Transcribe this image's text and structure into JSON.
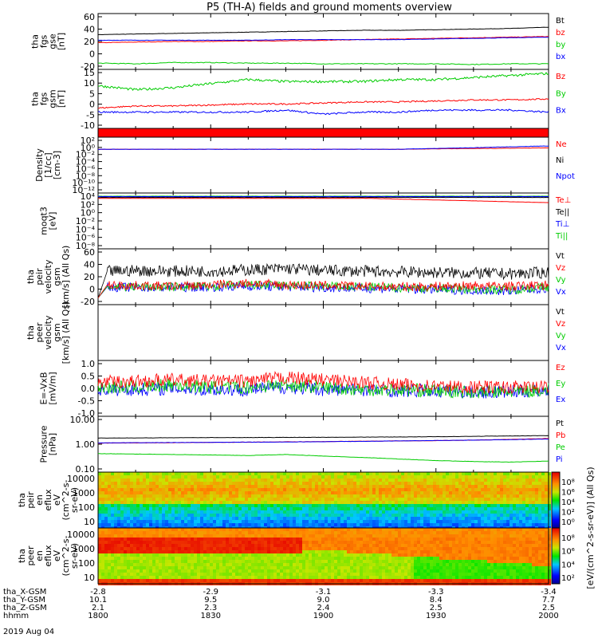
{
  "title": "P5 (TH-A) fields and ground moments overview",
  "date_label": "2019 Aug 04",
  "colors": {
    "black": "#000000",
    "red": "#ff0000",
    "green": "#00cc00",
    "blue": "#0000ff",
    "lightgreen": "#66cc00",
    "yellow": "#e0e000"
  },
  "ephemeris": {
    "rows": [
      "tha_X-GSM",
      "tha_Y-GSM",
      "tha_Z-GSM",
      "hhmm"
    ],
    "columns": [
      {
        "hhmm": "1800",
        "x": "-2.8",
        "y": "10.1",
        "z": "2.1"
      },
      {
        "hhmm": "1830",
        "x": "-2.9",
        "y": "9.5",
        "z": "2.3"
      },
      {
        "hhmm": "1900",
        "x": "-3.1",
        "y": "9.0",
        "z": "2.4"
      },
      {
        "hhmm": "1930",
        "x": "-3.3",
        "y": "8.4",
        "z": "2.5"
      },
      {
        "hhmm": "2000",
        "x": "-3.4",
        "y": "7.7",
        "z": "2.5"
      }
    ]
  },
  "colorbar": {
    "label": "[eV/(cm^2-s-sr-eV)] (All Qs)"
  },
  "chart_data": [
    {
      "type": "line",
      "ylabel": [
        "tha",
        "fgs",
        "gse",
        "[nT]"
      ],
      "ylim": [
        -20,
        60
      ],
      "yticks": [
        "60",
        "40",
        "20",
        "0",
        "-20"
      ],
      "series": [
        {
          "name": "Bt",
          "values": [
            31,
            32,
            33,
            34,
            35,
            36,
            37,
            38,
            38,
            39,
            40,
            41,
            43
          ]
        },
        {
          "name": "bz",
          "values": [
            18,
            19,
            20,
            20,
            21,
            21,
            22,
            23,
            24,
            25,
            26,
            27,
            28
          ]
        },
        {
          "name": "by",
          "values": [
            -15,
            -16,
            -14,
            -14,
            -15,
            -15,
            -16,
            -16,
            -16,
            -16,
            -17,
            -16,
            -16
          ]
        },
        {
          "name": "bx",
          "values": [
            22,
            22,
            22,
            22,
            22,
            23,
            23,
            23,
            23,
            24,
            25,
            26,
            27
          ]
        }
      ]
    },
    {
      "type": "line",
      "ylabel": [
        "tha",
        "fgs",
        "gsm",
        "[nT]"
      ],
      "ylim": [
        -12,
        15
      ],
      "yticks": [
        "15",
        "10",
        "5",
        "0",
        "-5",
        "-10"
      ],
      "series": [
        {
          "name": "Bz",
          "values": [
            -3,
            -2,
            -2,
            -1.5,
            -1,
            -1,
            -0.5,
            0,
            0,
            0.5,
            1,
            1,
            1.5
          ]
        },
        {
          "name": "By",
          "values": [
            8,
            6,
            7,
            9,
            11,
            10,
            10,
            10,
            11,
            11,
            12,
            13,
            14
          ]
        },
        {
          "name": "Bx",
          "values": [
            -5,
            -5,
            -5,
            -5,
            -5,
            -4,
            -6,
            -5,
            -5,
            -4,
            -4,
            -4,
            -5
          ]
        }
      ]
    },
    {
      "type": "line",
      "ylabel": [
        "Density",
        "[1/cc]",
        "[cm-3]"
      ],
      "yticks": [
        "10²",
        "10⁰",
        "10⁻²",
        "10⁻⁴",
        "10⁻⁶",
        "10⁻⁸",
        "10⁻¹⁰",
        "10⁻¹²"
      ],
      "series": [
        {
          "name": "Ne",
          "values": [
            0.3,
            0.3,
            0.3,
            0.3,
            0.3,
            0.3,
            0.3,
            0.3,
            0.3,
            0.4,
            0.5,
            0.6,
            0.8
          ]
        },
        {
          "name": "Ni",
          "values": []
        },
        {
          "name": "Npot",
          "values": [
            0.3,
            0.3,
            0.3,
            0.3,
            0.3,
            0.3,
            0.3,
            0.3,
            0.3,
            0.5,
            0.8,
            1.5,
            2.5
          ]
        }
      ]
    },
    {
      "type": "line",
      "ylabel": [
        "moqt3",
        "[eV]"
      ],
      "yticks": [
        "10⁴",
        "10²",
        "10⁰",
        "10⁻²",
        "10⁻⁴",
        "10⁻⁶",
        "10⁻⁸"
      ],
      "series": [
        {
          "name": "Te⊥",
          "values": []
        },
        {
          "name": "Te||",
          "values": []
        },
        {
          "name": "Ti⊥",
          "values": []
        },
        {
          "name": "Ti||",
          "values": []
        }
      ]
    },
    {
      "type": "line",
      "ylabel": [
        "tha",
        "peir",
        "velocity",
        "gsm",
        "[km/s] (All Qs)"
      ],
      "ylim": [
        -20,
        60
      ],
      "yticks": [
        "60",
        "40",
        "20",
        "0",
        "-20"
      ],
      "series": [
        {
          "name": "Vt",
          "values": [
            25,
            27,
            26,
            26,
            28,
            30,
            27,
            26,
            25,
            24,
            23,
            22,
            24
          ]
        },
        {
          "name": "Vz",
          "values": [
            5,
            4,
            3,
            5,
            8,
            5,
            4,
            3,
            2,
            3,
            4,
            3,
            5
          ]
        },
        {
          "name": "Vy",
          "values": [
            3,
            2,
            2,
            3,
            5,
            4,
            3,
            2,
            1,
            0,
            -1,
            -2,
            2
          ]
        },
        {
          "name": "Vx",
          "values": [
            2,
            1,
            1,
            2,
            3,
            2,
            1,
            0,
            -1,
            -2,
            -3,
            -4,
            0
          ]
        }
      ]
    },
    {
      "type": "line",
      "ylabel": [
        "tha",
        "peer",
        "velocity",
        "gsm",
        "[km/s] (All Qs)"
      ],
      "yticks": [],
      "series": [
        {
          "name": "Vt",
          "values": []
        },
        {
          "name": "Vz",
          "values": []
        },
        {
          "name": "Vy",
          "values": []
        },
        {
          "name": "Vx",
          "values": []
        }
      ]
    },
    {
      "type": "line",
      "ylabel": [
        "E=-VxB",
        "[mV/m]"
      ],
      "ylim": [
        -1,
        1
      ],
      "yticks": [
        "1.0",
        "0.5",
        "0.0",
        "-0.5",
        "-1.0"
      ],
      "series": [
        {
          "name": "Ez",
          "values": [
            0.3,
            0.35,
            0.4,
            0.35,
            0.35,
            0.5,
            0.4,
            0.3,
            0.2,
            0.15,
            0.1,
            0.1,
            0.1
          ]
        },
        {
          "name": "Ey",
          "values": [
            0.1,
            0.1,
            0.2,
            0.1,
            0.1,
            0.2,
            0.1,
            0.0,
            0.0,
            -0.05,
            -0.1,
            -0.1,
            0.0
          ]
        },
        {
          "name": "Ex",
          "values": [
            0.0,
            0.0,
            0.05,
            0.0,
            0.0,
            0.1,
            0.0,
            0.0,
            -0.05,
            -0.05,
            -0.1,
            -0.1,
            0.0
          ]
        }
      ]
    },
    {
      "type": "line",
      "ylabel": [
        "Pressure",
        "[nPa]"
      ],
      "yscale": "log",
      "ylim": [
        0.05,
        10
      ],
      "yticks": [
        "10.00",
        "1.00",
        "0.10"
      ],
      "series": [
        {
          "name": "Pt",
          "values": [
            0.75,
            0.76,
            0.78,
            0.8,
            0.8,
            0.82,
            0.83,
            0.85,
            0.87,
            0.9,
            0.95,
            1.0,
            1.05
          ]
        },
        {
          "name": "Pb",
          "values": [
            0.37,
            0.38,
            0.39,
            0.41,
            0.42,
            0.44,
            0.46,
            0.48,
            0.5,
            0.52,
            0.56,
            0.62,
            0.7
          ]
        },
        {
          "name": "Pe",
          "values": []
        },
        {
          "name": "Pi",
          "values": [
            0.38,
            0.39,
            0.4,
            0.41,
            0.42,
            0.43,
            0.45,
            0.47,
            0.5,
            0.53,
            0.56,
            0.6,
            0.66
          ]
        }
      ]
    },
    {
      "type": "heatmap",
      "ylabel": [
        "tha",
        "peir",
        "en",
        "eflux",
        "eV",
        "(cm^2-s-",
        "sr-eV)"
      ],
      "yticks": [
        "10000",
        "1000",
        "100",
        "10"
      ]
    },
    {
      "type": "heatmap",
      "ylabel": [
        "tha",
        "peer",
        "en",
        "eflux",
        "eV",
        "(cm^2-s-",
        "sr-eV)"
      ],
      "yticks": [
        "10000",
        "1000",
        "100",
        "10"
      ]
    }
  ],
  "legends": [
    [
      {
        "t": "Bt",
        "c": "#000000"
      },
      {
        "t": "bz",
        "c": "#ff0000"
      },
      {
        "t": "by",
        "c": "#00cc00"
      },
      {
        "t": "bx",
        "c": "#0000ff"
      }
    ],
    [
      {
        "t": "Bz",
        "c": "#ff0000"
      },
      {
        "t": "By",
        "c": "#00cc00"
      },
      {
        "t": "Bx",
        "c": "#0000ff"
      }
    ],
    [
      {
        "t": "Ne",
        "c": "#ff0000"
      },
      {
        "t": "Ni",
        "c": "#000000"
      },
      {
        "t": "Npot",
        "c": "#0000ff"
      }
    ],
    [
      {
        "t": "Te⊥",
        "c": "#ff0000"
      },
      {
        "t": "Te||",
        "c": "#000000"
      },
      {
        "t": "Ti⊥",
        "c": "#0000ff"
      },
      {
        "t": "Ti||",
        "c": "#00cc00"
      }
    ],
    [
      {
        "t": "Vt",
        "c": "#000000"
      },
      {
        "t": "Vz",
        "c": "#ff0000"
      },
      {
        "t": "Vy",
        "c": "#00cc00"
      },
      {
        "t": "Vx",
        "c": "#0000ff"
      }
    ],
    [
      {
        "t": "Vt",
        "c": "#000000"
      },
      {
        "t": "Vz",
        "c": "#ff0000"
      },
      {
        "t": "Vy",
        "c": "#00cc00"
      },
      {
        "t": "Vx",
        "c": "#0000ff"
      }
    ],
    [
      {
        "t": "Ez",
        "c": "#ff0000"
      },
      {
        "t": "Ey",
        "c": "#00cc00"
      },
      {
        "t": "Ex",
        "c": "#0000ff"
      }
    ],
    [
      {
        "t": "Pt",
        "c": "#000000"
      },
      {
        "t": "Pb",
        "c": "#ff0000"
      },
      {
        "t": "Pe",
        "c": "#00cc00"
      },
      {
        "t": "Pi",
        "c": "#0000ff"
      }
    ]
  ],
  "colorbar_ticks": [
    [
      "10⁸",
      "10⁶",
      "10⁴",
      "10²",
      "10⁰"
    ],
    [
      "10⁸",
      "10⁶",
      "10⁴",
      "10²"
    ]
  ]
}
